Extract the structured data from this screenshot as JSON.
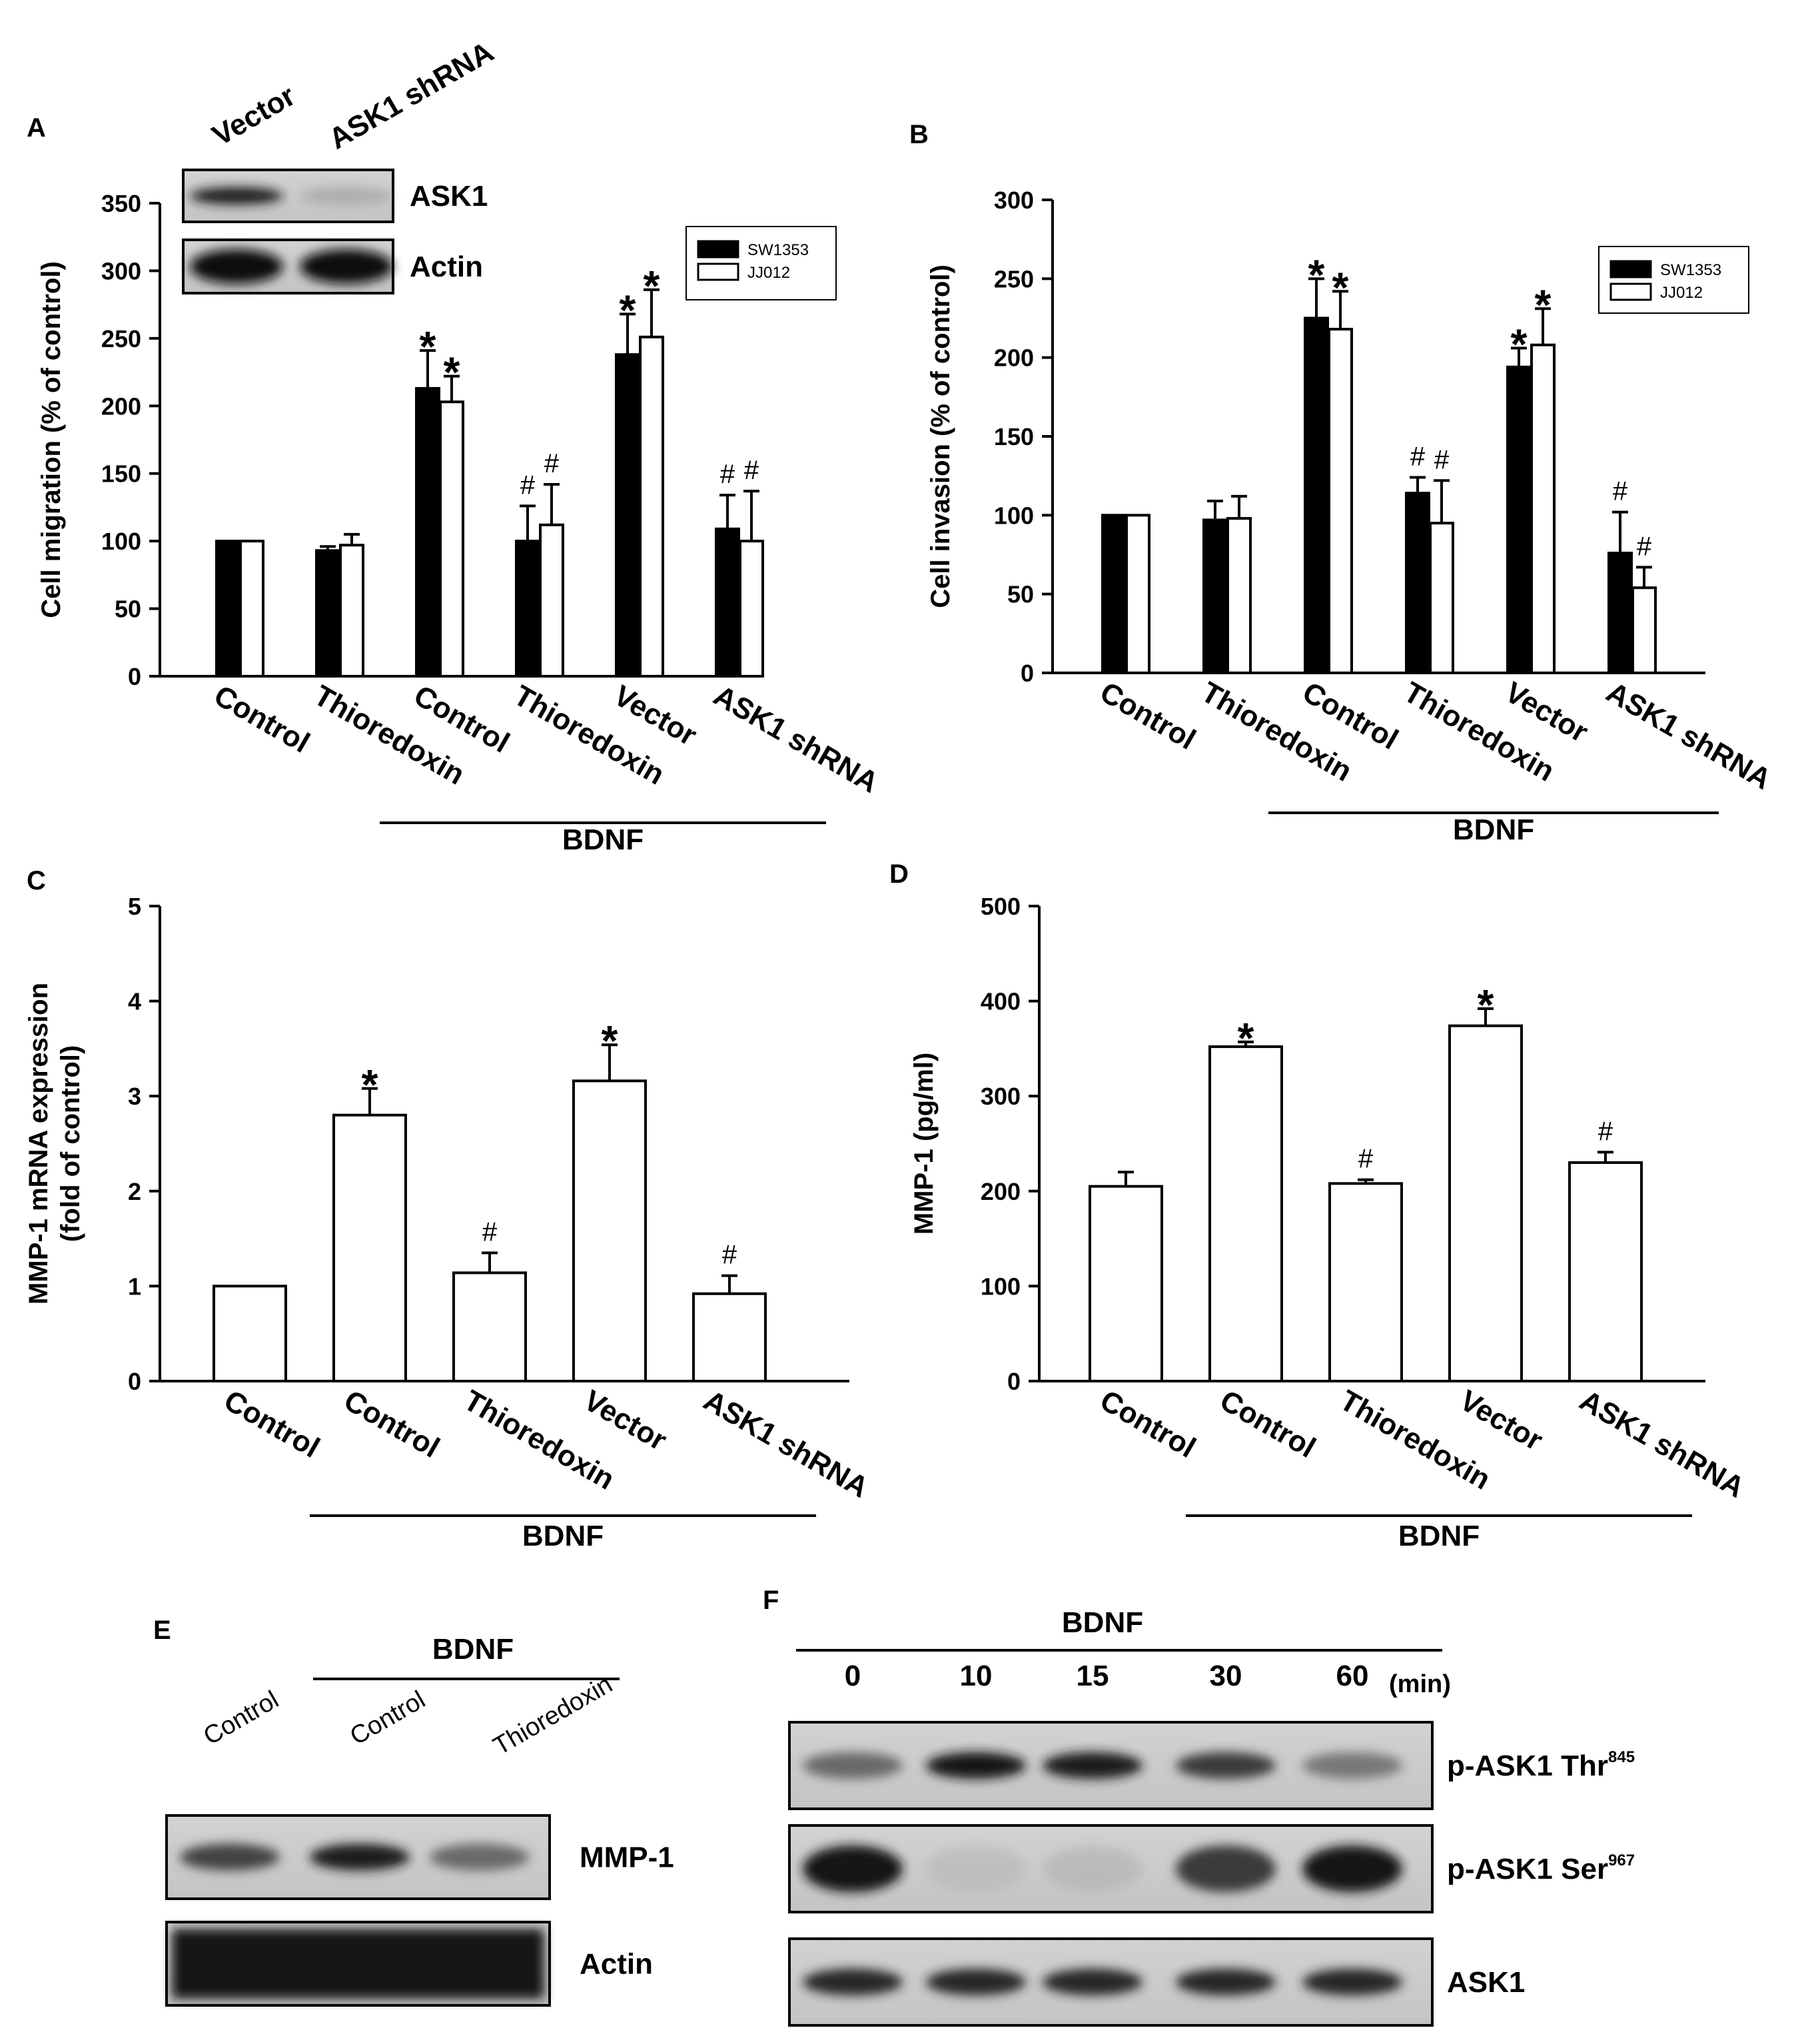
{
  "chart_data": [
    {
      "panel": "A",
      "type": "bar",
      "ylabel": "Cell migration (% of control)",
      "ylim": [
        0,
        350
      ],
      "yticks": [
        0,
        50,
        100,
        150,
        200,
        250,
        300,
        350
      ],
      "categories": [
        "Control",
        "Thioredoxin",
        "Control",
        "Thioredoxin",
        "Vector",
        "ASK1 shRNA"
      ],
      "group_label": "BDNF",
      "group_span": [
        2,
        5
      ],
      "legend": {
        "position": "top-right"
      },
      "series": [
        {
          "name": "SW1353",
          "color": "#000000",
          "values": [
            100,
            93,
            213,
            100,
            238,
            109
          ],
          "errors": [
            0,
            3,
            28,
            26,
            30,
            25
          ],
          "marks": [
            "",
            "",
            "*",
            "#",
            "*",
            "#"
          ]
        },
        {
          "name": "JJ012",
          "color": "#ffffff",
          "values": [
            100,
            97,
            203,
            112,
            251,
            100
          ],
          "errors": [
            0,
            8,
            19,
            30,
            35,
            37
          ],
          "marks": [
            "",
            "",
            "*",
            "#",
            "*",
            "#"
          ]
        }
      ]
    },
    {
      "panel": "B",
      "type": "bar",
      "ylabel": "Cell invasion (% of control)",
      "ylim": [
        0,
        300
      ],
      "yticks": [
        0,
        50,
        100,
        150,
        200,
        250,
        300
      ],
      "categories": [
        "Control",
        "Thioredoxin",
        "Control",
        "Thioredoxin",
        "Vector",
        "ASK1 shRNA"
      ],
      "group_label": "BDNF",
      "group_span": [
        2,
        5
      ],
      "legend": {
        "position": "top-right"
      },
      "series": [
        {
          "name": "SW1353",
          "color": "#000000",
          "values": [
            100,
            97,
            225,
            114,
            194,
            76
          ],
          "errors": [
            0,
            12,
            25,
            10,
            12,
            26
          ],
          "marks": [
            "",
            "",
            "*",
            "#",
            "*",
            "#"
          ]
        },
        {
          "name": "JJ012",
          "color": "#ffffff",
          "values": [
            100,
            98,
            218,
            95,
            208,
            54
          ],
          "errors": [
            0,
            14,
            24,
            27,
            23,
            13
          ],
          "marks": [
            "",
            "",
            "*",
            "#",
            "*",
            "#"
          ]
        }
      ]
    },
    {
      "panel": "C",
      "type": "bar",
      "ylabel": [
        "MMP-1 mRNA expression",
        "(fold of control)"
      ],
      "ylim": [
        0,
        5
      ],
      "yticks": [
        0,
        1,
        2,
        3,
        4,
        5
      ],
      "categories": [
        "Control",
        "Control",
        "Thioredoxin",
        "Vector",
        "ASK1 shRNA"
      ],
      "group_label": "BDNF",
      "group_span": [
        1,
        4
      ],
      "series": [
        {
          "name": "",
          "color": "#ffffff",
          "values": [
            1.0,
            2.8,
            1.14,
            3.16,
            0.92
          ],
          "errors": [
            0,
            0.28,
            0.21,
            0.38,
            0.19
          ],
          "marks": [
            "",
            "*",
            "#",
            "*",
            "#"
          ]
        }
      ]
    },
    {
      "panel": "D",
      "type": "bar",
      "ylabel": "MMP-1 (pg/ml)",
      "ylim": [
        0,
        500
      ],
      "yticks": [
        0,
        100,
        200,
        300,
        400,
        500
      ],
      "categories": [
        "Control",
        "Control",
        "Thioredoxin",
        "Vector",
        "ASK1 shRNA"
      ],
      "group_label": "BDNF",
      "group_span": [
        1,
        4
      ],
      "series": [
        {
          "name": "",
          "color": "#ffffff",
          "values": [
            205,
            352,
            208,
            374,
            230
          ],
          "errors": [
            15,
            5,
            4,
            18,
            11
          ],
          "marks": [
            "",
            "*",
            "#",
            "*",
            "#"
          ]
        }
      ]
    }
  ],
  "panels": {
    "A": {
      "letter": "A"
    },
    "B": {
      "letter": "B"
    },
    "C": {
      "letter": "C"
    },
    "D": {
      "letter": "D"
    },
    "E": {
      "letter": "E"
    },
    "F": {
      "letter": "F"
    }
  },
  "blot_a": {
    "lanes": [
      "Vector",
      "ASK1 shRNA"
    ],
    "rows": [
      {
        "label": "ASK1",
        "intensity": [
          0.9,
          0.25
        ]
      },
      {
        "label": "Actin",
        "intensity": [
          1.0,
          1.0
        ]
      }
    ]
  },
  "blot_e": {
    "group_label": "BDNF",
    "lanes": [
      "Control",
      "Control",
      "Thioredoxin"
    ],
    "rows": [
      {
        "label": "MMP-1",
        "intensity": [
          0.7,
          0.9,
          0.55
        ]
      },
      {
        "label": "Actin",
        "intensity": [
          1.0,
          1.0,
          1.0
        ]
      }
    ]
  },
  "blot_f": {
    "group_label": "BDNF",
    "time_points": [
      "0",
      "10",
      "15",
      "30",
      "60"
    ],
    "unit": "(min)",
    "rows": [
      {
        "label": "p-ASK1 Thr",
        "superscript": "845",
        "intensity": [
          0.55,
          0.95,
          0.9,
          0.75,
          0.5
        ]
      },
      {
        "label": "p-ASK1 Ser",
        "superscript": "967",
        "intensity": [
          0.95,
          0.12,
          0.15,
          0.75,
          0.95
        ]
      },
      {
        "label": "ASK1",
        "superscript": "",
        "intensity": [
          0.85,
          0.85,
          0.85,
          0.85,
          0.85
        ]
      }
    ]
  }
}
